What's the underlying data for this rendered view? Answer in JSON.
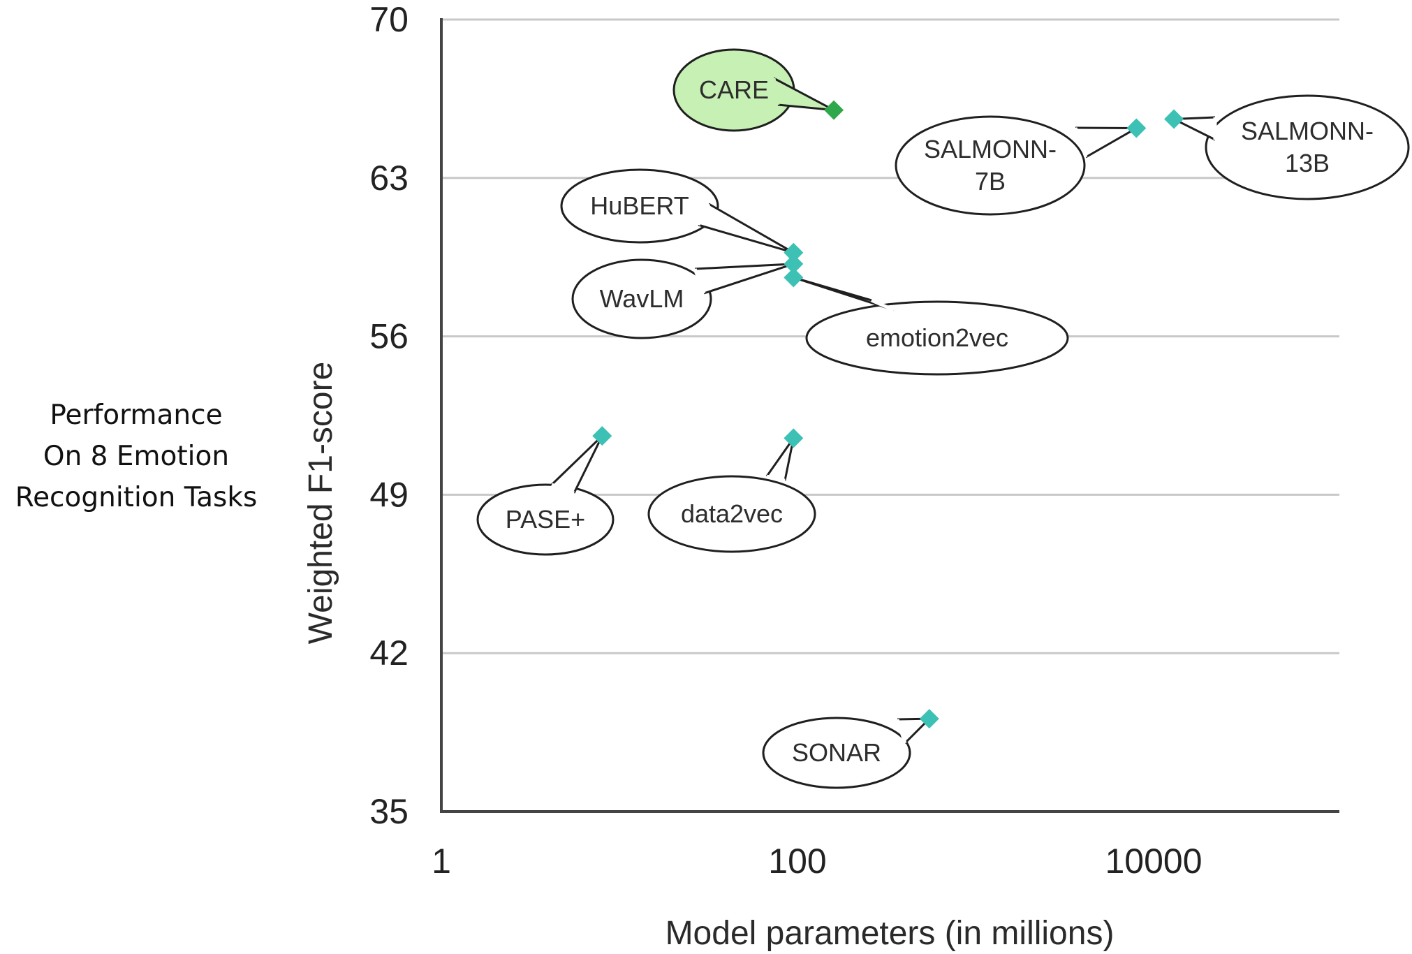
{
  "side_caption": [
    "Performance",
    "On 8 Emotion",
    "Recognition Tasks"
  ],
  "colors": {
    "point": "#3cc1b4",
    "highlight_point": "#2ea84a",
    "highlight_fill": "#c6f0b4",
    "grid": "#c8c8c8",
    "axis": "#444444"
  },
  "chart_data": {
    "type": "scatter",
    "xlabel": "Model parameters (in millions)",
    "ylabel": "Weighted F1-score",
    "x_scale": "log",
    "xlim": [
      1,
      300000
    ],
    "ylim": [
      35,
      70
    ],
    "x_ticks": [
      "1",
      "100",
      "10000"
    ],
    "y_ticks": [
      "35",
      "42",
      "49",
      "56",
      "63",
      "70"
    ],
    "grid": "horizontal",
    "points": [
      {
        "label": "CARE",
        "x": 160,
        "y": 66.0,
        "highlight": true
      },
      {
        "label": "SALMONN-\n7B",
        "x": 8000,
        "y": 65.2,
        "highlight": false
      },
      {
        "label": "SALMONN-\n13B",
        "x": 13000,
        "y": 65.6,
        "highlight": false
      },
      {
        "label": "HuBERT",
        "x": 95,
        "y": 59.7,
        "highlight": false
      },
      {
        "label": "WavLM",
        "x": 95,
        "y": 59.2,
        "highlight": false
      },
      {
        "label": "emotion2vec",
        "x": 95,
        "y": 58.6,
        "highlight": false
      },
      {
        "label": "PASE+",
        "x": 8,
        "y": 51.6,
        "highlight": false
      },
      {
        "label": "data2vec",
        "x": 95,
        "y": 51.5,
        "highlight": false
      },
      {
        "label": "SONAR",
        "x": 550,
        "y": 39.1,
        "highlight": false
      }
    ]
  }
}
